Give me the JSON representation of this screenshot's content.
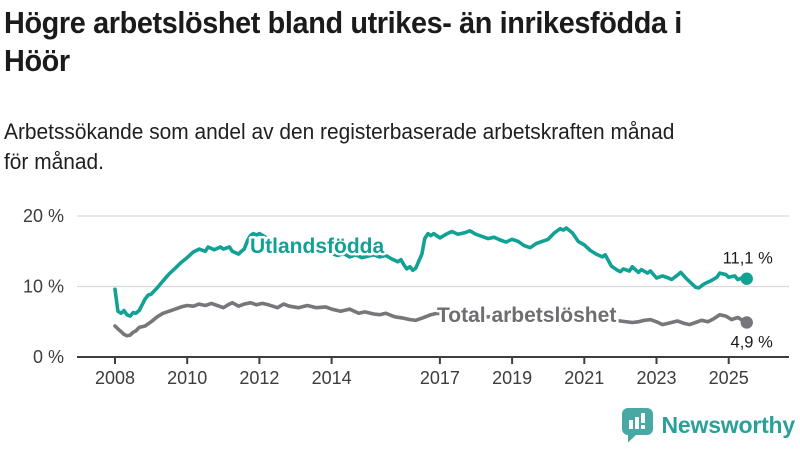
{
  "header": {
    "title": "Högre arbetslöshet bland utrikes- än inrikesfödda i\nHöör",
    "subtitle": "Arbetssökande som andel av den registerbaserade arbetskraften månad\nför månad."
  },
  "footer": {
    "brand": "Newsworthy",
    "brand_color": "#2aa09a",
    "icon": "newsworthy-bar-chart-bubble-icon",
    "icon_color": "#48a9a4"
  },
  "chart_data": {
    "type": "line",
    "title": "Högre arbetslöshet bland utrikes- än inrikesfödda i Höör",
    "xlabel": "",
    "ylabel": "",
    "unit": "%",
    "grid": "horizontal",
    "legend_position": "inline-labels",
    "colors": {
      "grid": "#d9d9d9",
      "axis": "#3d3d3d",
      "tick_text": "#3d3d3d",
      "value_label_text": "#1a1a1a"
    },
    "x_axis": {
      "range": [
        2007.85,
        2026.3
      ],
      "ticks": [
        2008,
        2010,
        2012,
        2014,
        2017,
        2019,
        2021,
        2023,
        2025
      ],
      "tick_labels": [
        "2008",
        "2010",
        "2012",
        "2014",
        "2017",
        "2019",
        "2021",
        "2023",
        "2025"
      ]
    },
    "y_axis": {
      "range": [
        0,
        20
      ],
      "ticks": [
        0,
        10,
        20
      ],
      "tick_labels": [
        "0 %",
        "10 %",
        "20 %"
      ]
    },
    "series": [
      {
        "name": "Utlandsfödda",
        "color": "#12a295",
        "label_color": "#12a295",
        "end_label": "11,1 %",
        "end_value": 11.1,
        "points": [
          [
            2008.0,
            9.6
          ],
          [
            2008.08,
            6.5
          ],
          [
            2008.17,
            6.2
          ],
          [
            2008.25,
            6.6
          ],
          [
            2008.33,
            6.0
          ],
          [
            2008.42,
            5.8
          ],
          [
            2008.5,
            6.3
          ],
          [
            2008.58,
            6.2
          ],
          [
            2008.67,
            6.6
          ],
          [
            2008.75,
            7.4
          ],
          [
            2008.83,
            8.2
          ],
          [
            2008.92,
            8.8
          ],
          [
            2009.0,
            8.9
          ],
          [
            2009.17,
            9.8
          ],
          [
            2009.33,
            10.8
          ],
          [
            2009.5,
            11.8
          ],
          [
            2009.67,
            12.6
          ],
          [
            2009.83,
            13.4
          ],
          [
            2010.0,
            14.1
          ],
          [
            2010.17,
            14.9
          ],
          [
            2010.33,
            15.3
          ],
          [
            2010.5,
            15.0
          ],
          [
            2010.58,
            15.6
          ],
          [
            2010.75,
            15.2
          ],
          [
            2010.92,
            15.6
          ],
          [
            2011.0,
            15.3
          ],
          [
            2011.17,
            15.6
          ],
          [
            2011.25,
            15.0
          ],
          [
            2011.42,
            14.6
          ],
          [
            2011.5,
            15.0
          ],
          [
            2011.58,
            15.3
          ],
          [
            2011.67,
            16.5
          ],
          [
            2011.75,
            17.2
          ],
          [
            2011.83,
            17.5
          ],
          [
            2011.92,
            17.3
          ],
          [
            2012.0,
            17.5
          ],
          [
            2012.17,
            17.0
          ],
          [
            2012.33,
            16.4
          ],
          [
            2012.5,
            15.8
          ],
          [
            2012.67,
            16.0
          ],
          [
            2012.83,
            15.6
          ],
          [
            2013.0,
            15.8
          ],
          [
            2013.17,
            16.0
          ],
          [
            2013.33,
            15.6
          ],
          [
            2013.5,
            15.3
          ],
          [
            2013.67,
            15.5
          ],
          [
            2013.83,
            15.1
          ],
          [
            2014.0,
            14.7
          ],
          [
            2014.17,
            14.4
          ],
          [
            2014.33,
            14.7
          ],
          [
            2014.5,
            14.2
          ],
          [
            2014.67,
            14.5
          ],
          [
            2014.83,
            14.1
          ],
          [
            2015.0,
            14.3
          ],
          [
            2015.17,
            14.5
          ],
          [
            2015.33,
            14.2
          ],
          [
            2015.5,
            14.4
          ],
          [
            2015.67,
            13.9
          ],
          [
            2015.83,
            13.5
          ],
          [
            2015.92,
            13.8
          ],
          [
            2016.0,
            13.1
          ],
          [
            2016.08,
            12.5
          ],
          [
            2016.17,
            12.8
          ],
          [
            2016.25,
            12.3
          ],
          [
            2016.33,
            12.6
          ],
          [
            2016.5,
            14.6
          ],
          [
            2016.58,
            16.8
          ],
          [
            2016.67,
            17.5
          ],
          [
            2016.75,
            17.2
          ],
          [
            2016.83,
            17.5
          ],
          [
            2017.0,
            16.9
          ],
          [
            2017.17,
            17.4
          ],
          [
            2017.33,
            17.8
          ],
          [
            2017.5,
            17.4
          ],
          [
            2017.67,
            17.6
          ],
          [
            2017.83,
            17.9
          ],
          [
            2018.0,
            17.4
          ],
          [
            2018.17,
            17.1
          ],
          [
            2018.33,
            16.8
          ],
          [
            2018.5,
            17.0
          ],
          [
            2018.67,
            16.6
          ],
          [
            2018.83,
            16.3
          ],
          [
            2019.0,
            16.7
          ],
          [
            2019.17,
            16.4
          ],
          [
            2019.33,
            15.8
          ],
          [
            2019.5,
            15.5
          ],
          [
            2019.67,
            16.1
          ],
          [
            2019.83,
            16.4
          ],
          [
            2020.0,
            16.7
          ],
          [
            2020.17,
            17.6
          ],
          [
            2020.33,
            18.2
          ],
          [
            2020.42,
            18.0
          ],
          [
            2020.5,
            18.3
          ],
          [
            2020.67,
            17.6
          ],
          [
            2020.83,
            16.4
          ],
          [
            2021.0,
            15.9
          ],
          [
            2021.17,
            15.1
          ],
          [
            2021.33,
            14.6
          ],
          [
            2021.5,
            14.2
          ],
          [
            2021.58,
            14.5
          ],
          [
            2021.75,
            12.9
          ],
          [
            2021.92,
            12.3
          ],
          [
            2022.0,
            12.1
          ],
          [
            2022.08,
            12.5
          ],
          [
            2022.25,
            12.2
          ],
          [
            2022.33,
            12.8
          ],
          [
            2022.5,
            12.0
          ],
          [
            2022.58,
            12.4
          ],
          [
            2022.75,
            11.9
          ],
          [
            2022.83,
            12.2
          ],
          [
            2023.0,
            11.2
          ],
          [
            2023.17,
            11.5
          ],
          [
            2023.33,
            11.2
          ],
          [
            2023.42,
            11.0
          ],
          [
            2023.58,
            11.6
          ],
          [
            2023.67,
            12.0
          ],
          [
            2023.83,
            11.1
          ],
          [
            2024.0,
            10.3
          ],
          [
            2024.08,
            9.9
          ],
          [
            2024.17,
            9.8
          ],
          [
            2024.33,
            10.4
          ],
          [
            2024.5,
            10.8
          ],
          [
            2024.67,
            11.3
          ],
          [
            2024.75,
            11.9
          ],
          [
            2024.92,
            11.7
          ],
          [
            2025.0,
            11.3
          ],
          [
            2025.17,
            11.5
          ],
          [
            2025.25,
            11.0
          ],
          [
            2025.42,
            11.3
          ],
          [
            2025.5,
            11.1
          ]
        ]
      },
      {
        "name": "Total arbetslöshet",
        "color": "#77777b",
        "label_color": "#6e6e72",
        "end_label": "4,9 %",
        "end_value": 4.9,
        "points": [
          [
            2008.0,
            4.4
          ],
          [
            2008.08,
            4.0
          ],
          [
            2008.17,
            3.6
          ],
          [
            2008.25,
            3.2
          ],
          [
            2008.33,
            3.0
          ],
          [
            2008.42,
            3.1
          ],
          [
            2008.5,
            3.5
          ],
          [
            2008.58,
            3.7
          ],
          [
            2008.67,
            4.2
          ],
          [
            2008.83,
            4.4
          ],
          [
            2009.0,
            5.0
          ],
          [
            2009.17,
            5.7
          ],
          [
            2009.33,
            6.2
          ],
          [
            2009.5,
            6.5
          ],
          [
            2009.67,
            6.8
          ],
          [
            2009.83,
            7.1
          ],
          [
            2010.0,
            7.3
          ],
          [
            2010.17,
            7.2
          ],
          [
            2010.33,
            7.5
          ],
          [
            2010.5,
            7.3
          ],
          [
            2010.67,
            7.6
          ],
          [
            2010.83,
            7.3
          ],
          [
            2011.0,
            7.0
          ],
          [
            2011.17,
            7.5
          ],
          [
            2011.25,
            7.7
          ],
          [
            2011.42,
            7.2
          ],
          [
            2011.58,
            7.5
          ],
          [
            2011.75,
            7.7
          ],
          [
            2011.92,
            7.4
          ],
          [
            2012.08,
            7.6
          ],
          [
            2012.25,
            7.4
          ],
          [
            2012.5,
            7.0
          ],
          [
            2012.67,
            7.5
          ],
          [
            2012.83,
            7.2
          ],
          [
            2013.08,
            7.0
          ],
          [
            2013.33,
            7.3
          ],
          [
            2013.58,
            7.0
          ],
          [
            2013.83,
            7.1
          ],
          [
            2014.0,
            6.8
          ],
          [
            2014.25,
            6.5
          ],
          [
            2014.5,
            6.8
          ],
          [
            2014.75,
            6.2
          ],
          [
            2014.92,
            6.4
          ],
          [
            2015.17,
            6.1
          ],
          [
            2015.33,
            6.0
          ],
          [
            2015.5,
            6.2
          ],
          [
            2015.75,
            5.7
          ],
          [
            2016.0,
            5.5
          ],
          [
            2016.17,
            5.3
          ],
          [
            2016.33,
            5.2
          ],
          [
            2016.5,
            5.5
          ],
          [
            2016.75,
            6.0
          ],
          [
            2016.92,
            6.2
          ],
          [
            2017.08,
            6.1
          ],
          [
            2017.25,
            6.3
          ],
          [
            2017.5,
            6.1
          ],
          [
            2017.75,
            5.9
          ],
          [
            2018.0,
            5.8
          ],
          [
            2018.33,
            5.7
          ],
          [
            2018.67,
            5.6
          ],
          [
            2019.0,
            5.5
          ],
          [
            2019.33,
            5.4
          ],
          [
            2019.67,
            5.6
          ],
          [
            2020.0,
            6.0
          ],
          [
            2020.33,
            6.5
          ],
          [
            2020.58,
            6.4
          ],
          [
            2021.0,
            6.0
          ],
          [
            2021.33,
            5.6
          ],
          [
            2021.67,
            5.3
          ],
          [
            2022.0,
            5.1
          ],
          [
            2022.33,
            4.9
          ],
          [
            2022.5,
            5.0
          ],
          [
            2022.67,
            5.2
          ],
          [
            2022.83,
            5.3
          ],
          [
            2023.0,
            5.0
          ],
          [
            2023.17,
            4.6
          ],
          [
            2023.33,
            4.8
          ],
          [
            2023.58,
            5.1
          ],
          [
            2023.75,
            4.8
          ],
          [
            2023.92,
            4.6
          ],
          [
            2024.08,
            4.9
          ],
          [
            2024.25,
            5.2
          ],
          [
            2024.42,
            5.0
          ],
          [
            2024.58,
            5.4
          ],
          [
            2024.75,
            6.0
          ],
          [
            2024.92,
            5.8
          ],
          [
            2025.08,
            5.3
          ],
          [
            2025.25,
            5.6
          ],
          [
            2025.42,
            5.1
          ],
          [
            2025.5,
            4.9
          ]
        ]
      }
    ]
  }
}
